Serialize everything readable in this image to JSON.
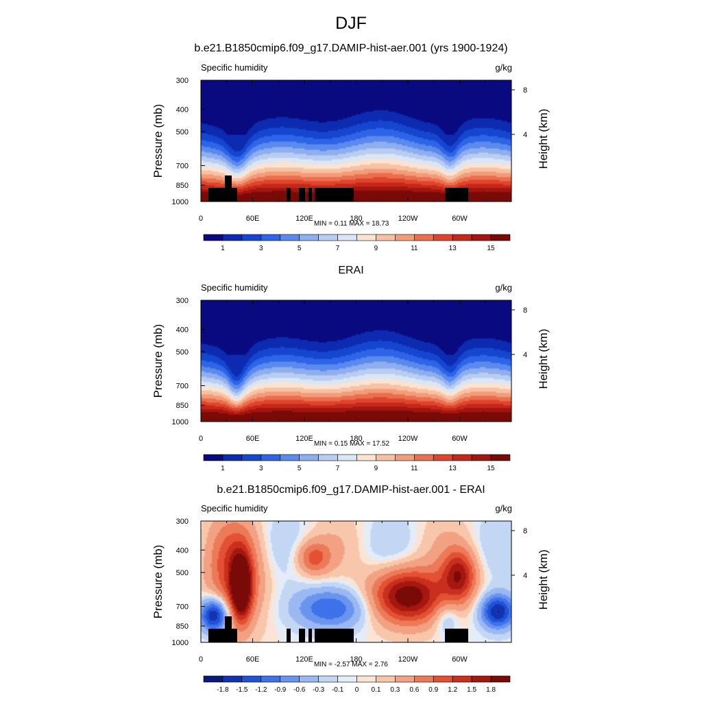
{
  "main_title": "DJF",
  "chart_data": [
    {
      "type": "heatmap",
      "title": "b.e21.B1850cmip6.f09_g17.DAMIP-hist-aer.001 (yrs 1900-1924)",
      "variable": "Specific humidity",
      "units": "g/kg",
      "ylabel": "Pressure (mb)",
      "y2label": "Height (km)",
      "xticks": [
        "0",
        "60E",
        "120E",
        "180",
        "120W",
        "60W"
      ],
      "yticks": [
        "300",
        "400",
        "500",
        "700",
        "850",
        "1000"
      ],
      "y2ticks": [
        "8",
        "4"
      ],
      "ylim": [
        1000,
        300
      ],
      "min": "0.11",
      "max": "18.73",
      "stats_text": "MIN =   0.11  MAX =  18.73",
      "colorbar_labels": [
        "1",
        "3",
        "5",
        "7",
        "9",
        "11",
        "13",
        "15"
      ],
      "palette": [
        "#0a0a80",
        "#0c2bb0",
        "#1546d0",
        "#2e64e8",
        "#5b8aee",
        "#8eaef0",
        "#b9cdf2",
        "#dbe6f5",
        "#fbe3d2",
        "#f7c2a4",
        "#f29c7a",
        "#ea6f4e",
        "#e0442b",
        "#c5281b",
        "#a3150f",
        "#7a0a07"
      ],
      "masked_terrain": true
    },
    {
      "type": "heatmap",
      "title": "ERAI",
      "variable": "Specific humidity",
      "units": "g/kg",
      "ylabel": "Pressure (mb)",
      "y2label": "Height (km)",
      "xticks": [
        "0",
        "60E",
        "120E",
        "180",
        "120W",
        "60W"
      ],
      "yticks": [
        "300",
        "400",
        "500",
        "700",
        "850",
        "1000"
      ],
      "y2ticks": [
        "8",
        "4"
      ],
      "ylim": [
        1000,
        300
      ],
      "min": "0.15",
      "max": "17.52",
      "stats_text": "MIN =   0.15  MAX =  17.52",
      "colorbar_labels": [
        "1",
        "3",
        "5",
        "7",
        "9",
        "11",
        "13",
        "15"
      ],
      "palette": [
        "#0a0a80",
        "#0c2bb0",
        "#1546d0",
        "#2e64e8",
        "#5b8aee",
        "#8eaef0",
        "#b9cdf2",
        "#dbe6f5",
        "#fbe3d2",
        "#f7c2a4",
        "#f29c7a",
        "#ea6f4e",
        "#e0442b",
        "#c5281b",
        "#a3150f",
        "#7a0a07"
      ],
      "masked_terrain": false
    },
    {
      "type": "heatmap",
      "title": "b.e21.B1850cmip6.f09_g17.DAMIP-hist-aer.001 - ERAI",
      "variable": "Specific humidity",
      "units": "g/kg",
      "ylabel": "Pressure (mb)",
      "y2label": "Height (km)",
      "xticks": [
        "0",
        "60E",
        "120E",
        "180",
        "120W",
        "60W"
      ],
      "yticks": [
        "300",
        "400",
        "500",
        "700",
        "850",
        "1000"
      ],
      "y2ticks": [
        "8",
        "4"
      ],
      "ylim": [
        1000,
        300
      ],
      "min": "-2.57",
      "max": "2.76",
      "stats_text": "MIN =  -2.57  MAX =   2.76",
      "colorbar_labels": [
        "-1.8",
        "-1.5",
        "-1.2",
        "-0.9",
        "-0.6",
        "-0.3",
        "-0.1",
        "0",
        "0.1",
        "0.3",
        "0.6",
        "0.9",
        "1.2",
        "1.5",
        "1.8"
      ],
      "palette": [
        "#0a1a7a",
        "#1433b0",
        "#1f52d8",
        "#3d72ea",
        "#6a95ef",
        "#9ab8f2",
        "#c3d6f4",
        "#e3ecf7",
        "#fbe4d6",
        "#f7c6ab",
        "#f2a283",
        "#ec7a58",
        "#e25133",
        "#c82f1c",
        "#a5170f",
        "#7a0a07"
      ],
      "masked_terrain": true
    }
  ]
}
